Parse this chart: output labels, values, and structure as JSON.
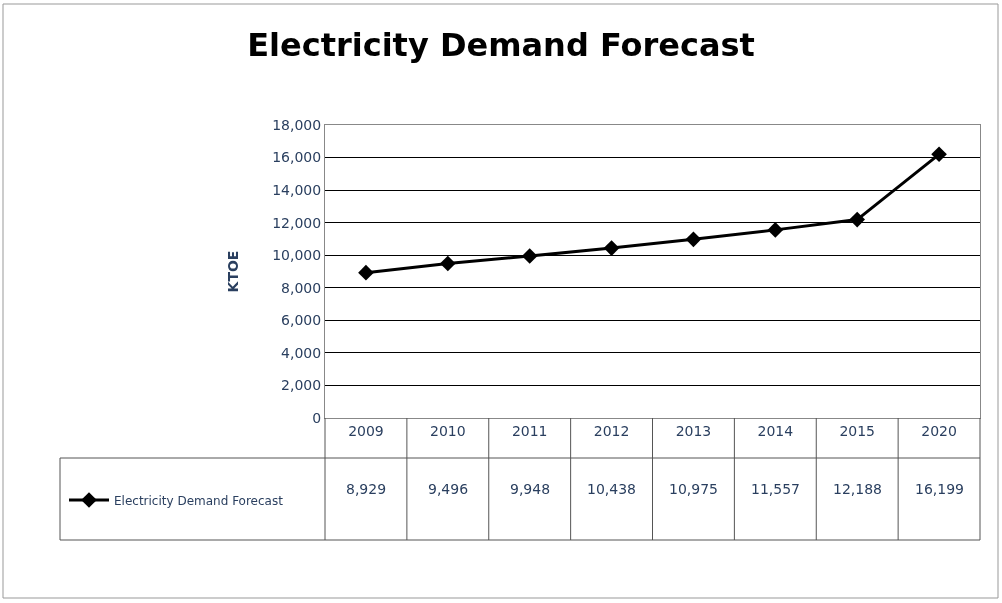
{
  "chart_data": {
    "type": "line",
    "title": "Electricity Demand Forecast",
    "ylabel": "KTOE",
    "categories": [
      "2009",
      "2010",
      "2011",
      "2012",
      "2013",
      "2014",
      "2015",
      "2020"
    ],
    "series": [
      {
        "name": "Electricity Demand Forecast",
        "color": "#000000",
        "values": [
          8929,
          9496,
          9948,
          10438,
          10975,
          11557,
          12188,
          16199
        ],
        "value_labels": [
          "8,929",
          "9,496",
          "9,948",
          "10,438",
          "10,975",
          "11,557",
          "12,188",
          "16,199"
        ]
      }
    ],
    "ylim": [
      0,
      18000
    ],
    "yticks": [
      0,
      {
        "value": 2000,
        "label": "2,000"
      },
      {
        "value": 4000,
        "label": "4,000"
      },
      {
        "value": 6000,
        "label": "6,000"
      },
      {
        "value": 8000,
        "label": "8,000"
      },
      {
        "value": 10000,
        "label": "10,000"
      },
      {
        "value": 12000,
        "label": "12,000"
      },
      {
        "value": 14000,
        "label": "14,000"
      },
      {
        "value": 16000,
        "label": "16,000"
      },
      {
        "value": 18000,
        "label": "18,000"
      }
    ],
    "grid": "y",
    "legend": "bottom left",
    "marker": "diamond",
    "line_style": "solid"
  }
}
